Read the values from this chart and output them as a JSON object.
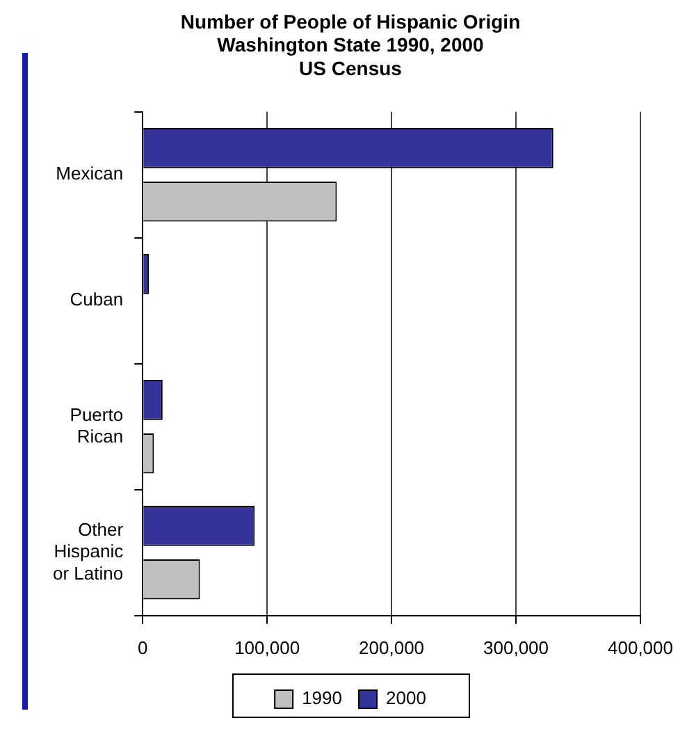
{
  "chart_data": {
    "type": "bar",
    "orientation": "horizontal",
    "title": "Number of People of Hispanic Origin\nWashington State 1990, 2000\nUS Census",
    "categories": [
      "Mexican",
      "Cuban",
      "Puerto Rican",
      "Other Hispanic or Latino"
    ],
    "series": [
      {
        "name": "1990",
        "color": "#c0c0c0",
        "values": [
          156000,
          0,
          9000,
          46000
        ]
      },
      {
        "name": "2000",
        "color": "#333399",
        "values": [
          330000,
          5000,
          16000,
          90000
        ]
      }
    ],
    "xlim": [
      0,
      400000
    ],
    "xticks": [
      0,
      {
        "value": 100000,
        "label": "100,000"
      },
      {
        "value": 200000,
        "label": "200,000"
      },
      {
        "value": 300000,
        "label": "300,000"
      },
      {
        "value": 400000,
        "label": "400,000"
      }
    ],
    "grid": "x",
    "legend": "bottom"
  }
}
